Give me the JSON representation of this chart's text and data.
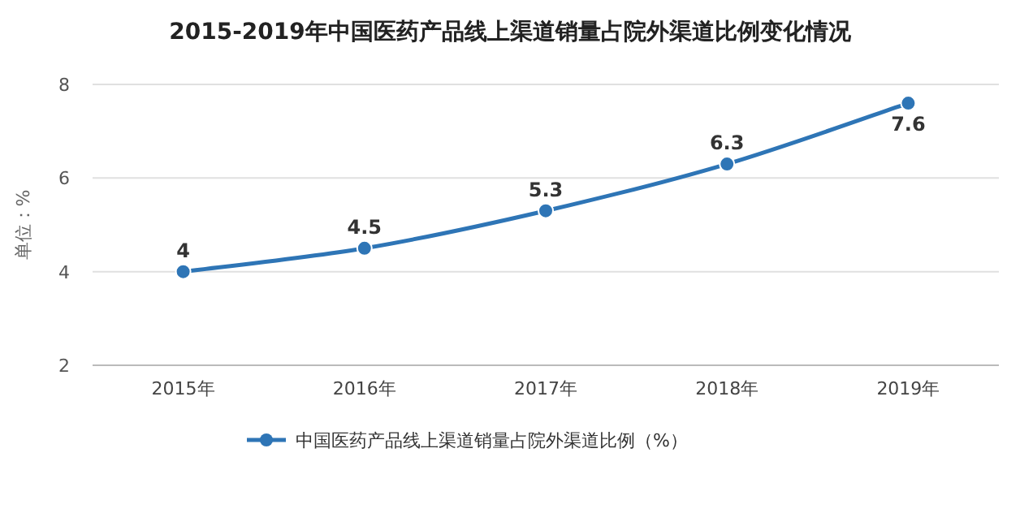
{
  "chart_data": {
    "type": "line",
    "title": "2015-2019年中国医药产品线上渠道销量占院外渠道比例变化情况",
    "ylabel": "单位：%",
    "categories": [
      "2015年",
      "2016年",
      "2017年",
      "2018年",
      "2019年"
    ],
    "series": [
      {
        "name": "中国医药产品线上渠道销量占院外渠道比例（%）",
        "color": "#2e75b6",
        "values": [
          4,
          4.5,
          5.3,
          6.3,
          7.6
        ]
      }
    ],
    "ylim": [
      2,
      8
    ],
    "yticks": [
      2,
      4,
      6,
      8
    ],
    "grid": "y",
    "legend": "bottom",
    "data_labels": true,
    "marker": "circle",
    "line_style": "solid"
  }
}
